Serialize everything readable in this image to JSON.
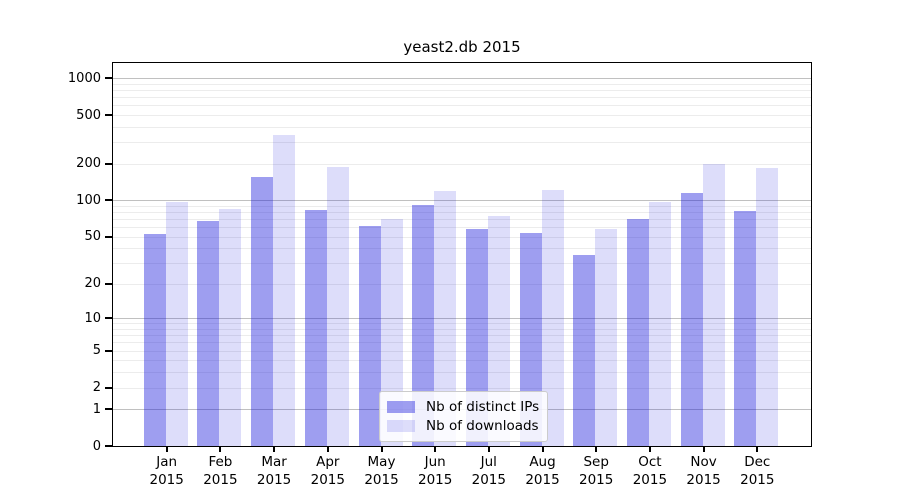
{
  "chart_data": {
    "type": "bar",
    "title": "yeast2.db 2015",
    "categories": [
      "Jan",
      "Feb",
      "Mar",
      "Apr",
      "May",
      "Jun",
      "Jul",
      "Aug",
      "Sep",
      "Oct",
      "Nov",
      "Dec"
    ],
    "category_year": "2015",
    "series": [
      {
        "name": "Nb of distinct IPs",
        "values": [
          53,
          68,
          156,
          84,
          61,
          92,
          58,
          54,
          35,
          70,
          115,
          81
        ],
        "color": "rgba(25,25,220,0.42)"
      },
      {
        "name": "Nb of downloads",
        "values": [
          97,
          85,
          342,
          188,
          70,
          119,
          74,
          121,
          58,
          97,
          199,
          185
        ],
        "color": "rgba(25,25,220,0.15)"
      }
    ],
    "yscale": "log1p",
    "yticks": [
      0,
      1,
      2,
      5,
      10,
      20,
      50,
      100,
      200,
      500,
      1000
    ],
    "ylim": [
      0,
      1330
    ],
    "grid": {
      "major_ticks": [
        1,
        10,
        100,
        1000
      ],
      "major_color": "#c0c0c0",
      "minor_color": "#ececec"
    },
    "legend": {
      "position": "bottom-center"
    },
    "colors": {
      "spine": "#000000",
      "background": "#ffffff",
      "text": "#000000"
    }
  }
}
